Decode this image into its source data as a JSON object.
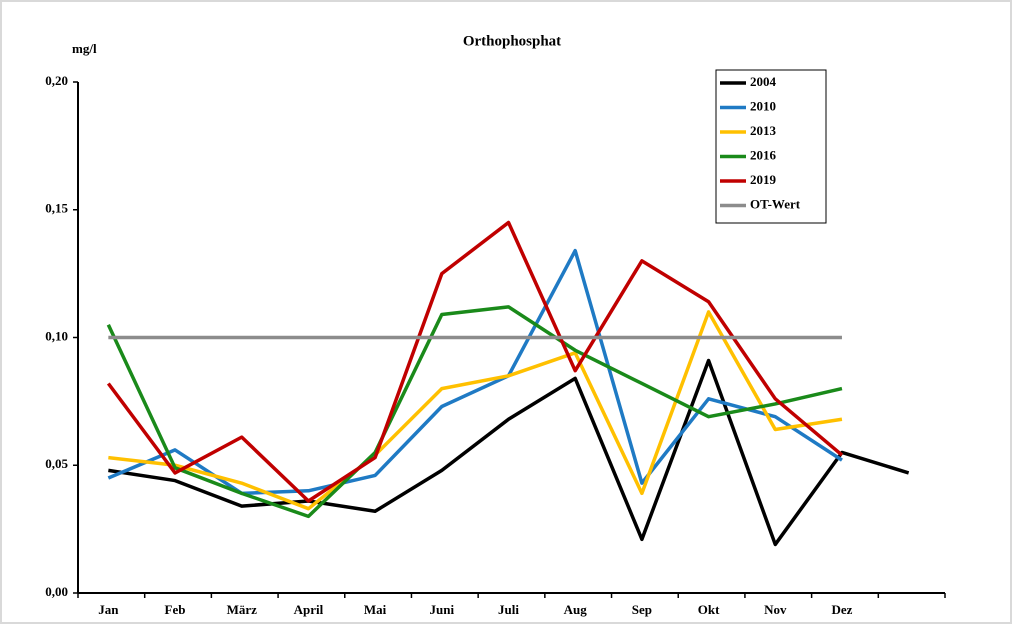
{
  "chart_data": {
    "type": "line",
    "title": "Orthophosphat",
    "y_label": "mg/l",
    "categories": [
      "Jan",
      "Feb",
      "März",
      "April",
      "Mai",
      "Juni",
      "Juli",
      "Aug",
      "Sep",
      "Okt",
      "Nov",
      "Dez",
      null
    ],
    "series": [
      {
        "name": "2004",
        "color": "#000000",
        "values": [
          0.048,
          0.044,
          0.034,
          0.036,
          0.032,
          0.048,
          0.068,
          0.084,
          0.021,
          0.091,
          0.019,
          0.055,
          0.047
        ]
      },
      {
        "name": "2010",
        "color": "#1f7ac4",
        "values": [
          0.045,
          0.056,
          0.039,
          0.04,
          0.046,
          0.073,
          0.085,
          0.134,
          0.043,
          0.076,
          0.069,
          0.052,
          null
        ]
      },
      {
        "name": "2013",
        "color": "#ffc000",
        "values": [
          0.053,
          0.05,
          0.043,
          0.033,
          0.054,
          0.08,
          0.085,
          0.094,
          0.039,
          0.11,
          0.064,
          0.068,
          null
        ]
      },
      {
        "name": "2016",
        "color": "#1a8a1a",
        "values": [
          0.105,
          0.049,
          0.039,
          0.03,
          0.055,
          0.109,
          0.112,
          0.095,
          0.082,
          0.069,
          0.074,
          0.08,
          null
        ]
      },
      {
        "name": "2019",
        "color": "#c00000",
        "values": [
          0.082,
          0.047,
          0.061,
          0.036,
          0.053,
          0.125,
          0.145,
          0.087,
          0.13,
          0.114,
          0.076,
          0.054,
          null
        ]
      },
      {
        "name": "OT-Wert",
        "color": "#8c8c8c",
        "values": [
          0.1,
          0.1,
          0.1,
          0.1,
          0.1,
          0.1,
          0.1,
          0.1,
          0.1,
          0.1,
          0.1,
          0.1,
          null
        ]
      }
    ],
    "ylim": [
      0,
      0.2
    ],
    "yticks": [
      {
        "value": 0,
        "label": "0,00"
      },
      {
        "value": 0.05,
        "label": "0,05"
      },
      {
        "value": 0.1,
        "label": "0,10"
      },
      {
        "value": 0.15,
        "label": "0,15"
      },
      {
        "value": 0.2,
        "label": "0,20"
      }
    ],
    "grid": false,
    "legend": "upper right"
  }
}
